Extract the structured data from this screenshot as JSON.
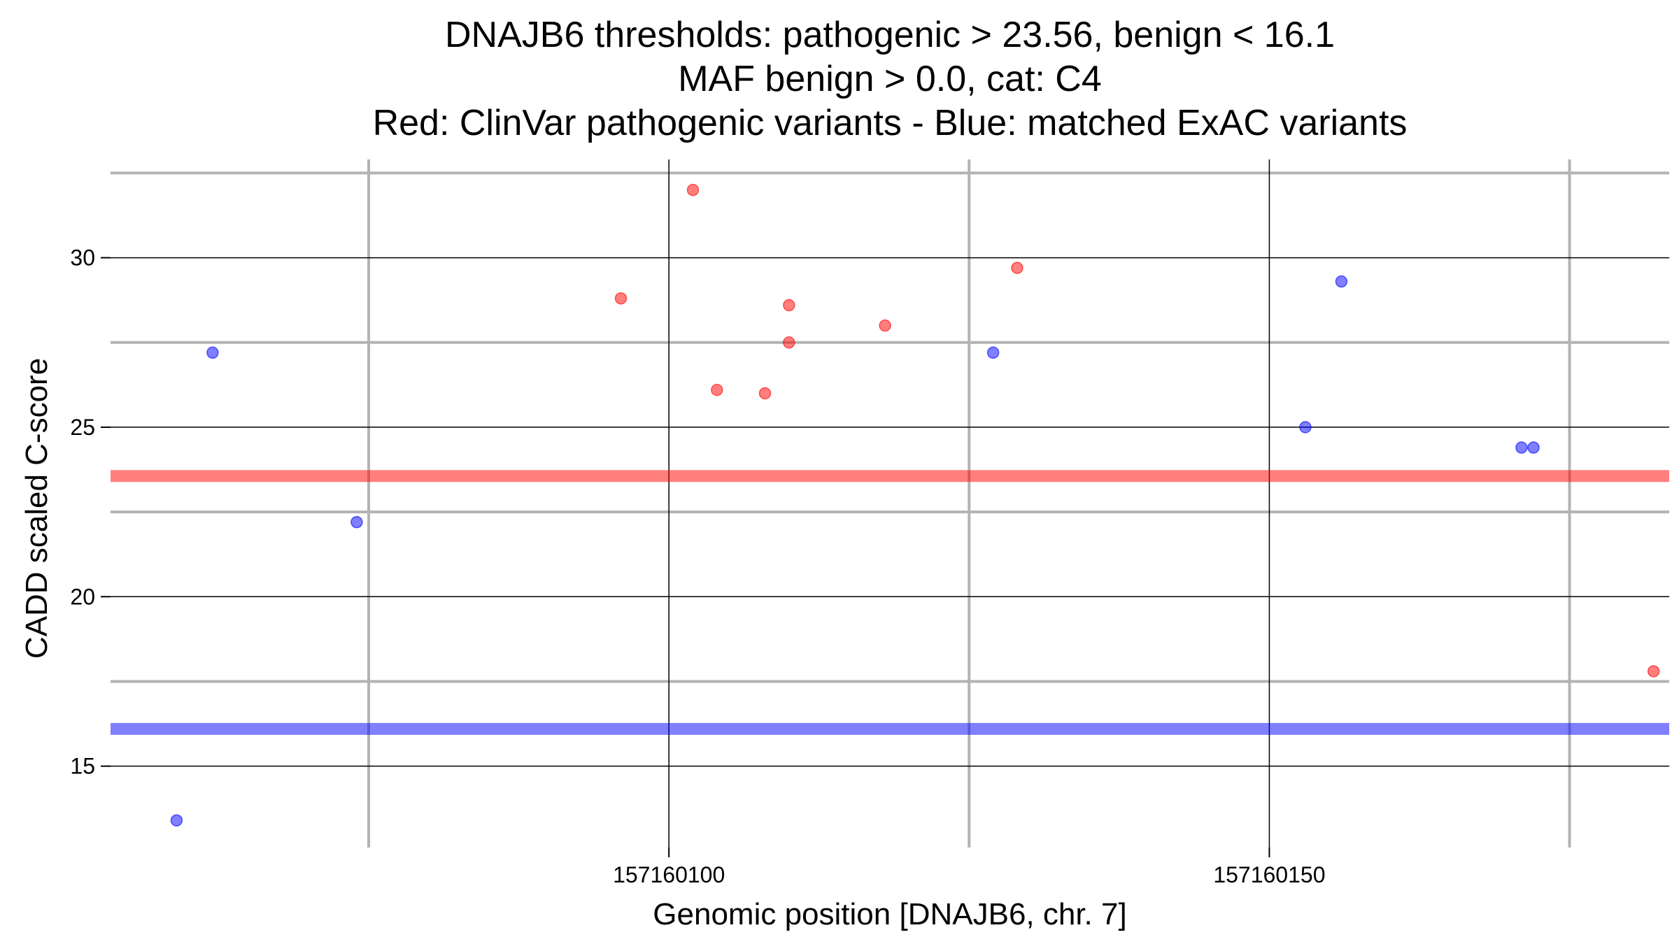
{
  "chart_data": {
    "type": "scatter",
    "title_lines": [
      "DNAJB6 thresholds: pathogenic > 23.56, benign < 16.1",
      "MAF benign > 0.0, cat: C4",
      "Red: ClinVar pathogenic variants - Blue: matched ExAC variants"
    ],
    "xlabel": "Genomic position [DNAJB6, chr. 7]",
    "ylabel": "CADD scaled C-score",
    "xlim": [
      157160053.5,
      157160183.3
    ],
    "ylim": [
      12.6,
      32.9
    ],
    "x_ticks": [
      157160100,
      157160150
    ],
    "x_tick_labels": [
      "157160100",
      "157160150"
    ],
    "x_minor_gridlines": [
      157160075,
      157160125,
      157160175
    ],
    "y_ticks": [
      15,
      20,
      25,
      30
    ],
    "y_tick_labels": [
      "15",
      "20",
      "25",
      "30"
    ],
    "y_minor_gridlines": [
      17.5,
      22.5,
      27.5,
      32.5
    ],
    "grid": true,
    "thresholds": [
      {
        "name": "pathogenic",
        "value": 23.56,
        "color": "#ff0000"
      },
      {
        "name": "benign",
        "value": 16.1,
        "color": "#0000ff"
      }
    ],
    "series": [
      {
        "color": "#ff0000",
        "x": [
          157160096,
          157160102,
          157160104,
          157160108,
          157160110,
          157160110,
          157160118,
          157160129,
          157160182
        ],
        "y": [
          28.8,
          32.0,
          26.1,
          26.0,
          28.6,
          27.5,
          28.0,
          29.7,
          17.8
        ]
      },
      {
        "color": "#0000ff",
        "x": [
          157160059,
          157160062,
          157160074,
          157160127,
          157160153,
          157160156,
          157160171,
          157160172
        ],
        "y": [
          13.4,
          27.2,
          22.2,
          27.2,
          25.0,
          29.3,
          24.4,
          24.4
        ]
      }
    ]
  }
}
